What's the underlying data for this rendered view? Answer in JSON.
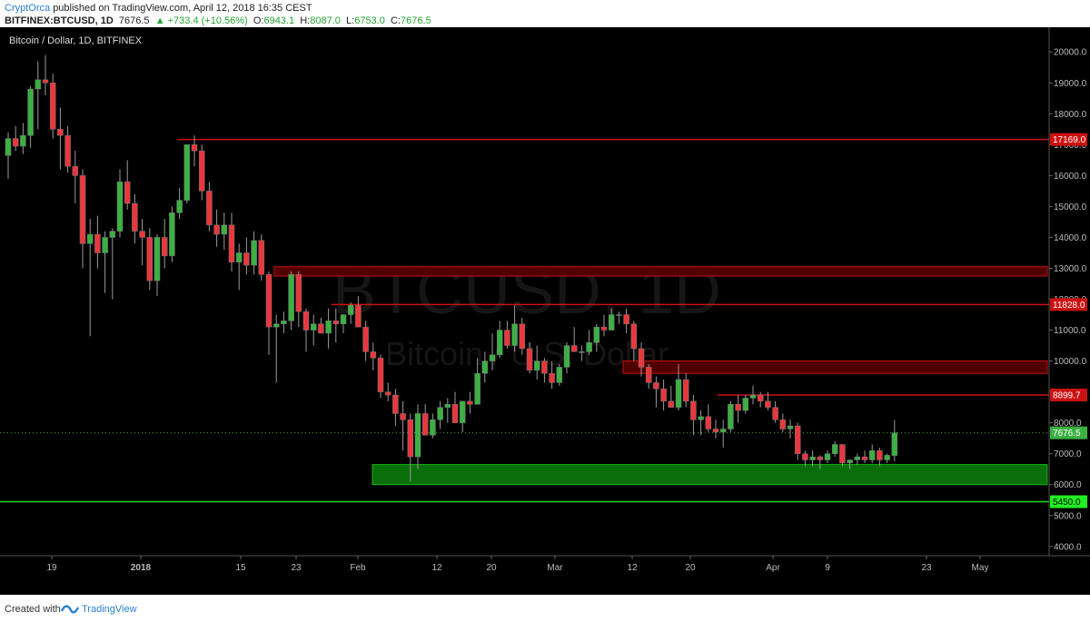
{
  "header": {
    "author": "CryptOrca",
    "published_text": "published on TradingView.com, April 12, 2018 16:35 CEST",
    "symbol": "BITFINEX:BTCUSD, 1D",
    "last": "7676.5",
    "change": "▲ +733.4 (+10.56%)",
    "ohlc_o_label": "O:",
    "ohlc_o": "6943.1",
    "ohlc_h_label": "H:",
    "ohlc_h": "8087.0",
    "ohlc_l_label": "L:",
    "ohlc_l": "6753.0",
    "ohlc_c_label": "C:",
    "ohlc_c": "7676.5"
  },
  "chart_label": "Bitcoin / Dollar, 1D, BITFINEX",
  "watermark": {
    "line1": "BTCUSD, 1D",
    "line2": "Bitcoin / U.S. Dollar"
  },
  "footer": {
    "created_with": "Created with",
    "brand": "TradingView"
  },
  "colors": {
    "background": "#000000",
    "up": "#3cb043",
    "down": "#e8383d",
    "resistance": "#cc1111",
    "support": "#11b511"
  },
  "chart_data": {
    "type": "candlestick",
    "ylim": [
      3700,
      20800
    ],
    "y_ticks": [
      "20000.0",
      "19000.0",
      "18000.0",
      "17000.0",
      "16000.0",
      "15000.0",
      "14000.0",
      "13000.0",
      "12000.0",
      "11000.0",
      "10000.0",
      "9000.0",
      "8000.0",
      "7000.0",
      "6000.0",
      "5000.0",
      "4000.0"
    ],
    "x_ticks": [
      {
        "label": "19",
        "bold": false
      },
      {
        "label": "2018",
        "bold": true
      },
      {
        "label": "15",
        "bold": false
      },
      {
        "label": "23",
        "bold": false
      },
      {
        "label": "Feb",
        "bold": false
      },
      {
        "label": "12",
        "bold": false
      },
      {
        "label": "20",
        "bold": false
      },
      {
        "label": "Mar",
        "bold": false
      },
      {
        "label": "12",
        "bold": false
      },
      {
        "label": "20",
        "bold": false
      },
      {
        "label": "Apr",
        "bold": false
      },
      {
        "label": "9",
        "bold": false
      },
      {
        "label": "23",
        "bold": false
      },
      {
        "label": "May",
        "bold": false
      }
    ],
    "levels": [
      {
        "label": "17169.0",
        "value": 17169,
        "kind": "resistance"
      },
      {
        "label": "11828.0",
        "value": 11828,
        "kind": "resistance"
      },
      {
        "label": "8899.7",
        "value": 8899.7,
        "kind": "resistance"
      },
      {
        "label": "7676.5",
        "value": 7676.5,
        "kind": "last"
      },
      {
        "label": "5450.0",
        "value": 5450,
        "kind": "support"
      }
    ],
    "zones": [
      {
        "kind": "resistance",
        "from_value": 12750,
        "to_value": 13050
      },
      {
        "kind": "resistance",
        "from_value": 9600,
        "to_value": 10000
      },
      {
        "kind": "support",
        "from_value": 6000,
        "to_value": 6650
      }
    ],
    "candles": [
      [
        16650,
        17400,
        15900,
        17200
      ],
      [
        17200,
        17600,
        16800,
        16950
      ],
      [
        16950,
        17700,
        16700,
        17300
      ],
      [
        17300,
        18900,
        16900,
        18800
      ],
      [
        18800,
        19700,
        17500,
        19100
      ],
      [
        19100,
        19900,
        18600,
        19000
      ],
      [
        19000,
        19300,
        17200,
        17500
      ],
      [
        17500,
        18200,
        16200,
        17300
      ],
      [
        17300,
        17600,
        16100,
        16300
      ],
      [
        16300,
        16800,
        15100,
        16000
      ],
      [
        16000,
        16200,
        13000,
        13800
      ],
      [
        13800,
        14600,
        10800,
        14100
      ],
      [
        14100,
        14700,
        13000,
        13500
      ],
      [
        13500,
        14200,
        12200,
        14000
      ],
      [
        14000,
        14300,
        12000,
        14200
      ],
      [
        14200,
        16200,
        14000,
        15800
      ],
      [
        15800,
        16500,
        14900,
        15100
      ],
      [
        15100,
        15400,
        13800,
        14200
      ],
      [
        14200,
        14600,
        13100,
        14000
      ],
      [
        14000,
        14300,
        12300,
        12600
      ],
      [
        12600,
        14100,
        12100,
        14000
      ],
      [
        14000,
        14600,
        13000,
        13400
      ],
      [
        13400,
        15000,
        13200,
        14800
      ],
      [
        14800,
        15600,
        14600,
        15200
      ],
      [
        15200,
        16900,
        15100,
        17000
      ],
      [
        17000,
        17300,
        16300,
        16800
      ],
      [
        16800,
        17000,
        15200,
        15500
      ],
      [
        15500,
        15800,
        14200,
        14400
      ],
      [
        14400,
        14900,
        13700,
        14100
      ],
      [
        14100,
        14800,
        13600,
        14400
      ],
      [
        14400,
        14800,
        12900,
        13200
      ],
      [
        13200,
        13800,
        12300,
        13500
      ],
      [
        13500,
        14000,
        12800,
        13100
      ],
      [
        13100,
        14200,
        12800,
        13900
      ],
      [
        13900,
        14100,
        12600,
        12800
      ],
      [
        12800,
        12900,
        10200,
        11100
      ],
      [
        11100,
        11500,
        9300,
        11200
      ],
      [
        11200,
        11600,
        10900,
        11300
      ],
      [
        11300,
        12900,
        11000,
        12800
      ],
      [
        12800,
        12900,
        11100,
        11600
      ],
      [
        11600,
        11700,
        10300,
        11000
      ],
      [
        11000,
        11500,
        10500,
        11200
      ],
      [
        11200,
        11400,
        10900,
        10900
      ],
      [
        10900,
        11700,
        10400,
        11300
      ],
      [
        11300,
        11700,
        10600,
        11200
      ],
      [
        11200,
        11500,
        10900,
        11500
      ],
      [
        11500,
        11900,
        11200,
        11800
      ],
      [
        11800,
        12100,
        11100,
        11100
      ],
      [
        11100,
        11300,
        10000,
        10300
      ],
      [
        10300,
        10600,
        9700,
        10100
      ],
      [
        10100,
        10200,
        8800,
        9000
      ],
      [
        9000,
        9300,
        8700,
        8900
      ],
      [
        8900,
        9100,
        7900,
        8300
      ],
      [
        8300,
        8700,
        7100,
        8100
      ],
      [
        8100,
        8300,
        6100,
        6900
      ],
      [
        6900,
        8600,
        6500,
        8300
      ],
      [
        8300,
        8600,
        7600,
        7600
      ],
      [
        7600,
        8300,
        7500,
        8100
      ],
      [
        8100,
        8700,
        7800,
        8500
      ],
      [
        8500,
        8800,
        8000,
        8600
      ],
      [
        8600,
        9000,
        8000,
        8000
      ],
      [
        8000,
        8700,
        7700,
        8700
      ],
      [
        8700,
        9000,
        8300,
        8600
      ],
      [
        8600,
        10100,
        8600,
        9600
      ],
      [
        9600,
        10300,
        9300,
        10000
      ],
      [
        10000,
        10900,
        9700,
        10200
      ],
      [
        10200,
        11300,
        10100,
        11000
      ],
      [
        11000,
        11300,
        10400,
        10500
      ],
      [
        10500,
        11800,
        10300,
        11200
      ],
      [
        11200,
        11400,
        10200,
        10400
      ],
      [
        10400,
        10600,
        9600,
        9700
      ],
      [
        9700,
        10500,
        9400,
        10000
      ],
      [
        10000,
        10100,
        9300,
        9600
      ],
      [
        9600,
        10000,
        9100,
        9300
      ],
      [
        9300,
        9900,
        9200,
        9800
      ],
      [
        9800,
        10600,
        9600,
        10500
      ],
      [
        10500,
        11100,
        10300,
        10300
      ],
      [
        10300,
        10500,
        10000,
        10300
      ],
      [
        10300,
        11000,
        10200,
        10600
      ],
      [
        10600,
        11200,
        10300,
        11100
      ],
      [
        11100,
        11500,
        10800,
        11000
      ],
      [
        11000,
        11700,
        11000,
        11500
      ],
      [
        11500,
        11600,
        11200,
        11500
      ],
      [
        11500,
        11700,
        10900,
        11200
      ],
      [
        11200,
        11300,
        10000,
        10400
      ],
      [
        10400,
        10600,
        9500,
        9800
      ],
      [
        9800,
        9900,
        9100,
        9300
      ],
      [
        9300,
        9500,
        8500,
        9100
      ],
      [
        9100,
        9400,
        8400,
        8700
      ],
      [
        8700,
        9200,
        8500,
        8500
      ],
      [
        8500,
        9900,
        8400,
        9400
      ],
      [
        9400,
        9600,
        8500,
        8700
      ],
      [
        8700,
        8900,
        7600,
        8100
      ],
      [
        8100,
        8400,
        7600,
        8200
      ],
      [
        8200,
        8600,
        7700,
        7800
      ],
      [
        7800,
        8100,
        7500,
        7700
      ],
      [
        7700,
        8100,
        7200,
        7800
      ],
      [
        7800,
        8700,
        7700,
        8600
      ],
      [
        8600,
        8900,
        8000,
        8400
      ],
      [
        8400,
        8900,
        8300,
        8800
      ],
      [
        8800,
        9200,
        8600,
        8900
      ],
      [
        8900,
        9000,
        8500,
        8700
      ],
      [
        8700,
        9000,
        8400,
        8500
      ],
      [
        8500,
        8700,
        8000,
        8100
      ],
      [
        8100,
        8300,
        7700,
        7800
      ],
      [
        7800,
        8100,
        7500,
        7900
      ],
      [
        7900,
        8000,
        6800,
        7000
      ],
      [
        7000,
        7100,
        6600,
        6800
      ],
      [
        6800,
        7100,
        6600,
        6900
      ],
      [
        6900,
        6950,
        6500,
        6800
      ],
      [
        6800,
        7100,
        6700,
        7000
      ],
      [
        7000,
        7400,
        6900,
        7300
      ],
      [
        7300,
        7300,
        6600,
        6700
      ],
      [
        6700,
        6800,
        6500,
        6800
      ],
      [
        6800,
        7000,
        6650,
        6900
      ],
      [
        6900,
        7100,
        6700,
        6800
      ],
      [
        6800,
        7300,
        6700,
        7100
      ],
      [
        7100,
        7200,
        6600,
        6800
      ],
      [
        6800,
        7000,
        6700,
        6950
      ],
      [
        6943.1,
        8087,
        6753,
        7676.5
      ]
    ]
  }
}
